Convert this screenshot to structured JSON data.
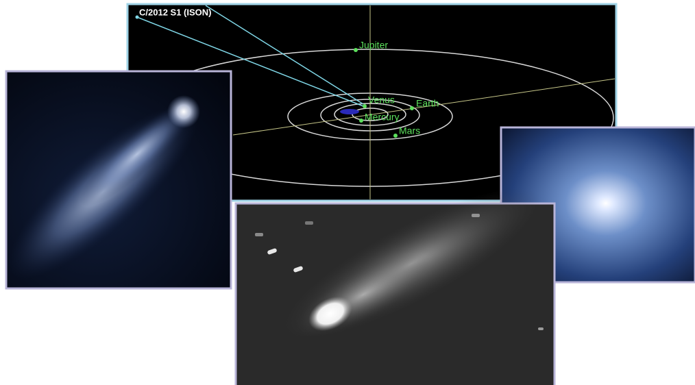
{
  "orbit_panel": {
    "title": "C/2012 S1 (ISON)",
    "planets": [
      "Jupiter",
      "Venus",
      "Earth",
      "Mercury",
      "Mars"
    ]
  }
}
